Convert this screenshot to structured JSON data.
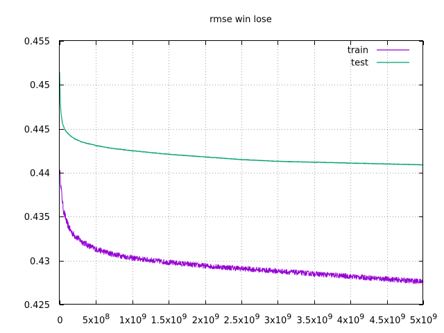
{
  "chart_data": {
    "type": "line",
    "title": "rmse win lose",
    "xlabel": "",
    "ylabel": "",
    "xlim": [
      0,
      5000000000
    ],
    "ylim": [
      0.425,
      0.455
    ],
    "grid": true,
    "legend_position": "top-right",
    "x_ticks": [
      {
        "value": 0,
        "label": "0"
      },
      {
        "value": 500000000,
        "label": "5x10",
        "exp": "8"
      },
      {
        "value": 1000000000,
        "label": "1x10",
        "exp": "9"
      },
      {
        "value": 1500000000,
        "label": "1.5x10",
        "exp": "9"
      },
      {
        "value": 2000000000,
        "label": "2x10",
        "exp": "9"
      },
      {
        "value": 2500000000,
        "label": "2.5x10",
        "exp": "9"
      },
      {
        "value": 3000000000,
        "label": "3x10",
        "exp": "9"
      },
      {
        "value": 3500000000,
        "label": "3.5x10",
        "exp": "9"
      },
      {
        "value": 4000000000,
        "label": "4x10",
        "exp": "9"
      },
      {
        "value": 4500000000,
        "label": "4.5x10",
        "exp": "9"
      },
      {
        "value": 5000000000,
        "label": "5x10",
        "exp": "9"
      }
    ],
    "y_ticks": [
      {
        "value": 0.425,
        "label": "0.425"
      },
      {
        "value": 0.43,
        "label": "0.43"
      },
      {
        "value": 0.435,
        "label": "0.435"
      },
      {
        "value": 0.44,
        "label": "0.44"
      },
      {
        "value": 0.445,
        "label": "0.445"
      },
      {
        "value": 0.45,
        "label": "0.45"
      },
      {
        "value": 0.455,
        "label": "0.455"
      }
    ],
    "series": [
      {
        "name": "train",
        "color": "#9400d3",
        "noise": 0.0003,
        "x": [
          0,
          20000000,
          50000000,
          100000000,
          150000000,
          200000000,
          300000000,
          400000000,
          500000000,
          700000000,
          1000000000,
          1500000000,
          2000000000,
          2500000000,
          3000000000,
          3500000000,
          4000000000,
          4500000000,
          5000000000
        ],
        "y": [
          0.4403,
          0.4382,
          0.4358,
          0.4343,
          0.4334,
          0.4329,
          0.4322,
          0.4317,
          0.4313,
          0.4308,
          0.4303,
          0.4298,
          0.4294,
          0.4291,
          0.4288,
          0.4285,
          0.4282,
          0.4279,
          0.4276
        ]
      },
      {
        "name": "test",
        "color": "#009e73",
        "noise": 3e-05,
        "x": [
          0,
          5000000,
          10000000,
          20000000,
          40000000,
          70000000,
          100000000,
          150000000,
          200000000,
          300000000,
          400000000,
          500000000,
          700000000,
          1000000000,
          1500000000,
          2000000000,
          2500000000,
          3000000000,
          3500000000,
          4000000000,
          4500000000,
          5000000000
        ],
        "y": [
          0.4515,
          0.4492,
          0.4478,
          0.4466,
          0.4456,
          0.4449,
          0.4446,
          0.4442,
          0.4439,
          0.4435,
          0.4433,
          0.4431,
          0.4428,
          0.4425,
          0.4421,
          0.4418,
          0.4415,
          0.4413,
          0.4412,
          0.4411,
          0.441,
          0.4409
        ]
      }
    ]
  }
}
